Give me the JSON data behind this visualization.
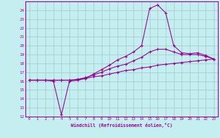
{
  "xlabel": "Windchill (Refroidissement éolien,°C)",
  "background_color": "#c5eef0",
  "grid_color": "#a0c8c8",
  "line_color": "#990099",
  "xlim": [
    -0.5,
    23.5
  ],
  "ylim": [
    12,
    25.0
  ],
  "xticks": [
    0,
    1,
    2,
    3,
    4,
    5,
    6,
    7,
    8,
    9,
    10,
    11,
    12,
    13,
    14,
    15,
    16,
    17,
    18,
    19,
    20,
    21,
    22,
    23
  ],
  "yticks": [
    12,
    13,
    14,
    15,
    16,
    17,
    18,
    19,
    20,
    21,
    22,
    23,
    24
  ],
  "line1_x": [
    0,
    1,
    2,
    3,
    4,
    5,
    6,
    7,
    8,
    9,
    10,
    11,
    12,
    13,
    14,
    15,
    16,
    17,
    18,
    19,
    20,
    21,
    22,
    23
  ],
  "line1_y": [
    16.1,
    16.1,
    16.1,
    16.0,
    12.2,
    16.0,
    16.1,
    16.3,
    16.8,
    17.3,
    17.8,
    18.4,
    18.8,
    19.3,
    20.0,
    24.2,
    24.6,
    23.7,
    20.0,
    19.2,
    19.1,
    19.2,
    18.9,
    18.5
  ],
  "line2_x": [
    0,
    1,
    2,
    3,
    4,
    5,
    6,
    7,
    8,
    9,
    10,
    11,
    12,
    13,
    14,
    15,
    16,
    17,
    18,
    19,
    20,
    21,
    22,
    23
  ],
  "line2_y": [
    16.1,
    16.1,
    16.1,
    16.1,
    16.1,
    16.1,
    16.2,
    16.4,
    16.7,
    17.0,
    17.4,
    17.7,
    17.9,
    18.3,
    18.7,
    19.3,
    19.6,
    19.6,
    19.3,
    19.0,
    19.0,
    19.0,
    18.8,
    18.5
  ],
  "line3_x": [
    0,
    1,
    2,
    3,
    4,
    5,
    6,
    7,
    8,
    9,
    10,
    11,
    12,
    13,
    14,
    15,
    16,
    17,
    18,
    19,
    20,
    21,
    22,
    23
  ],
  "line3_y": [
    16.1,
    16.1,
    16.1,
    16.1,
    16.1,
    16.1,
    16.2,
    16.3,
    16.5,
    16.6,
    16.8,
    17.0,
    17.2,
    17.3,
    17.5,
    17.6,
    17.8,
    17.9,
    18.0,
    18.1,
    18.2,
    18.3,
    18.4,
    18.5
  ]
}
